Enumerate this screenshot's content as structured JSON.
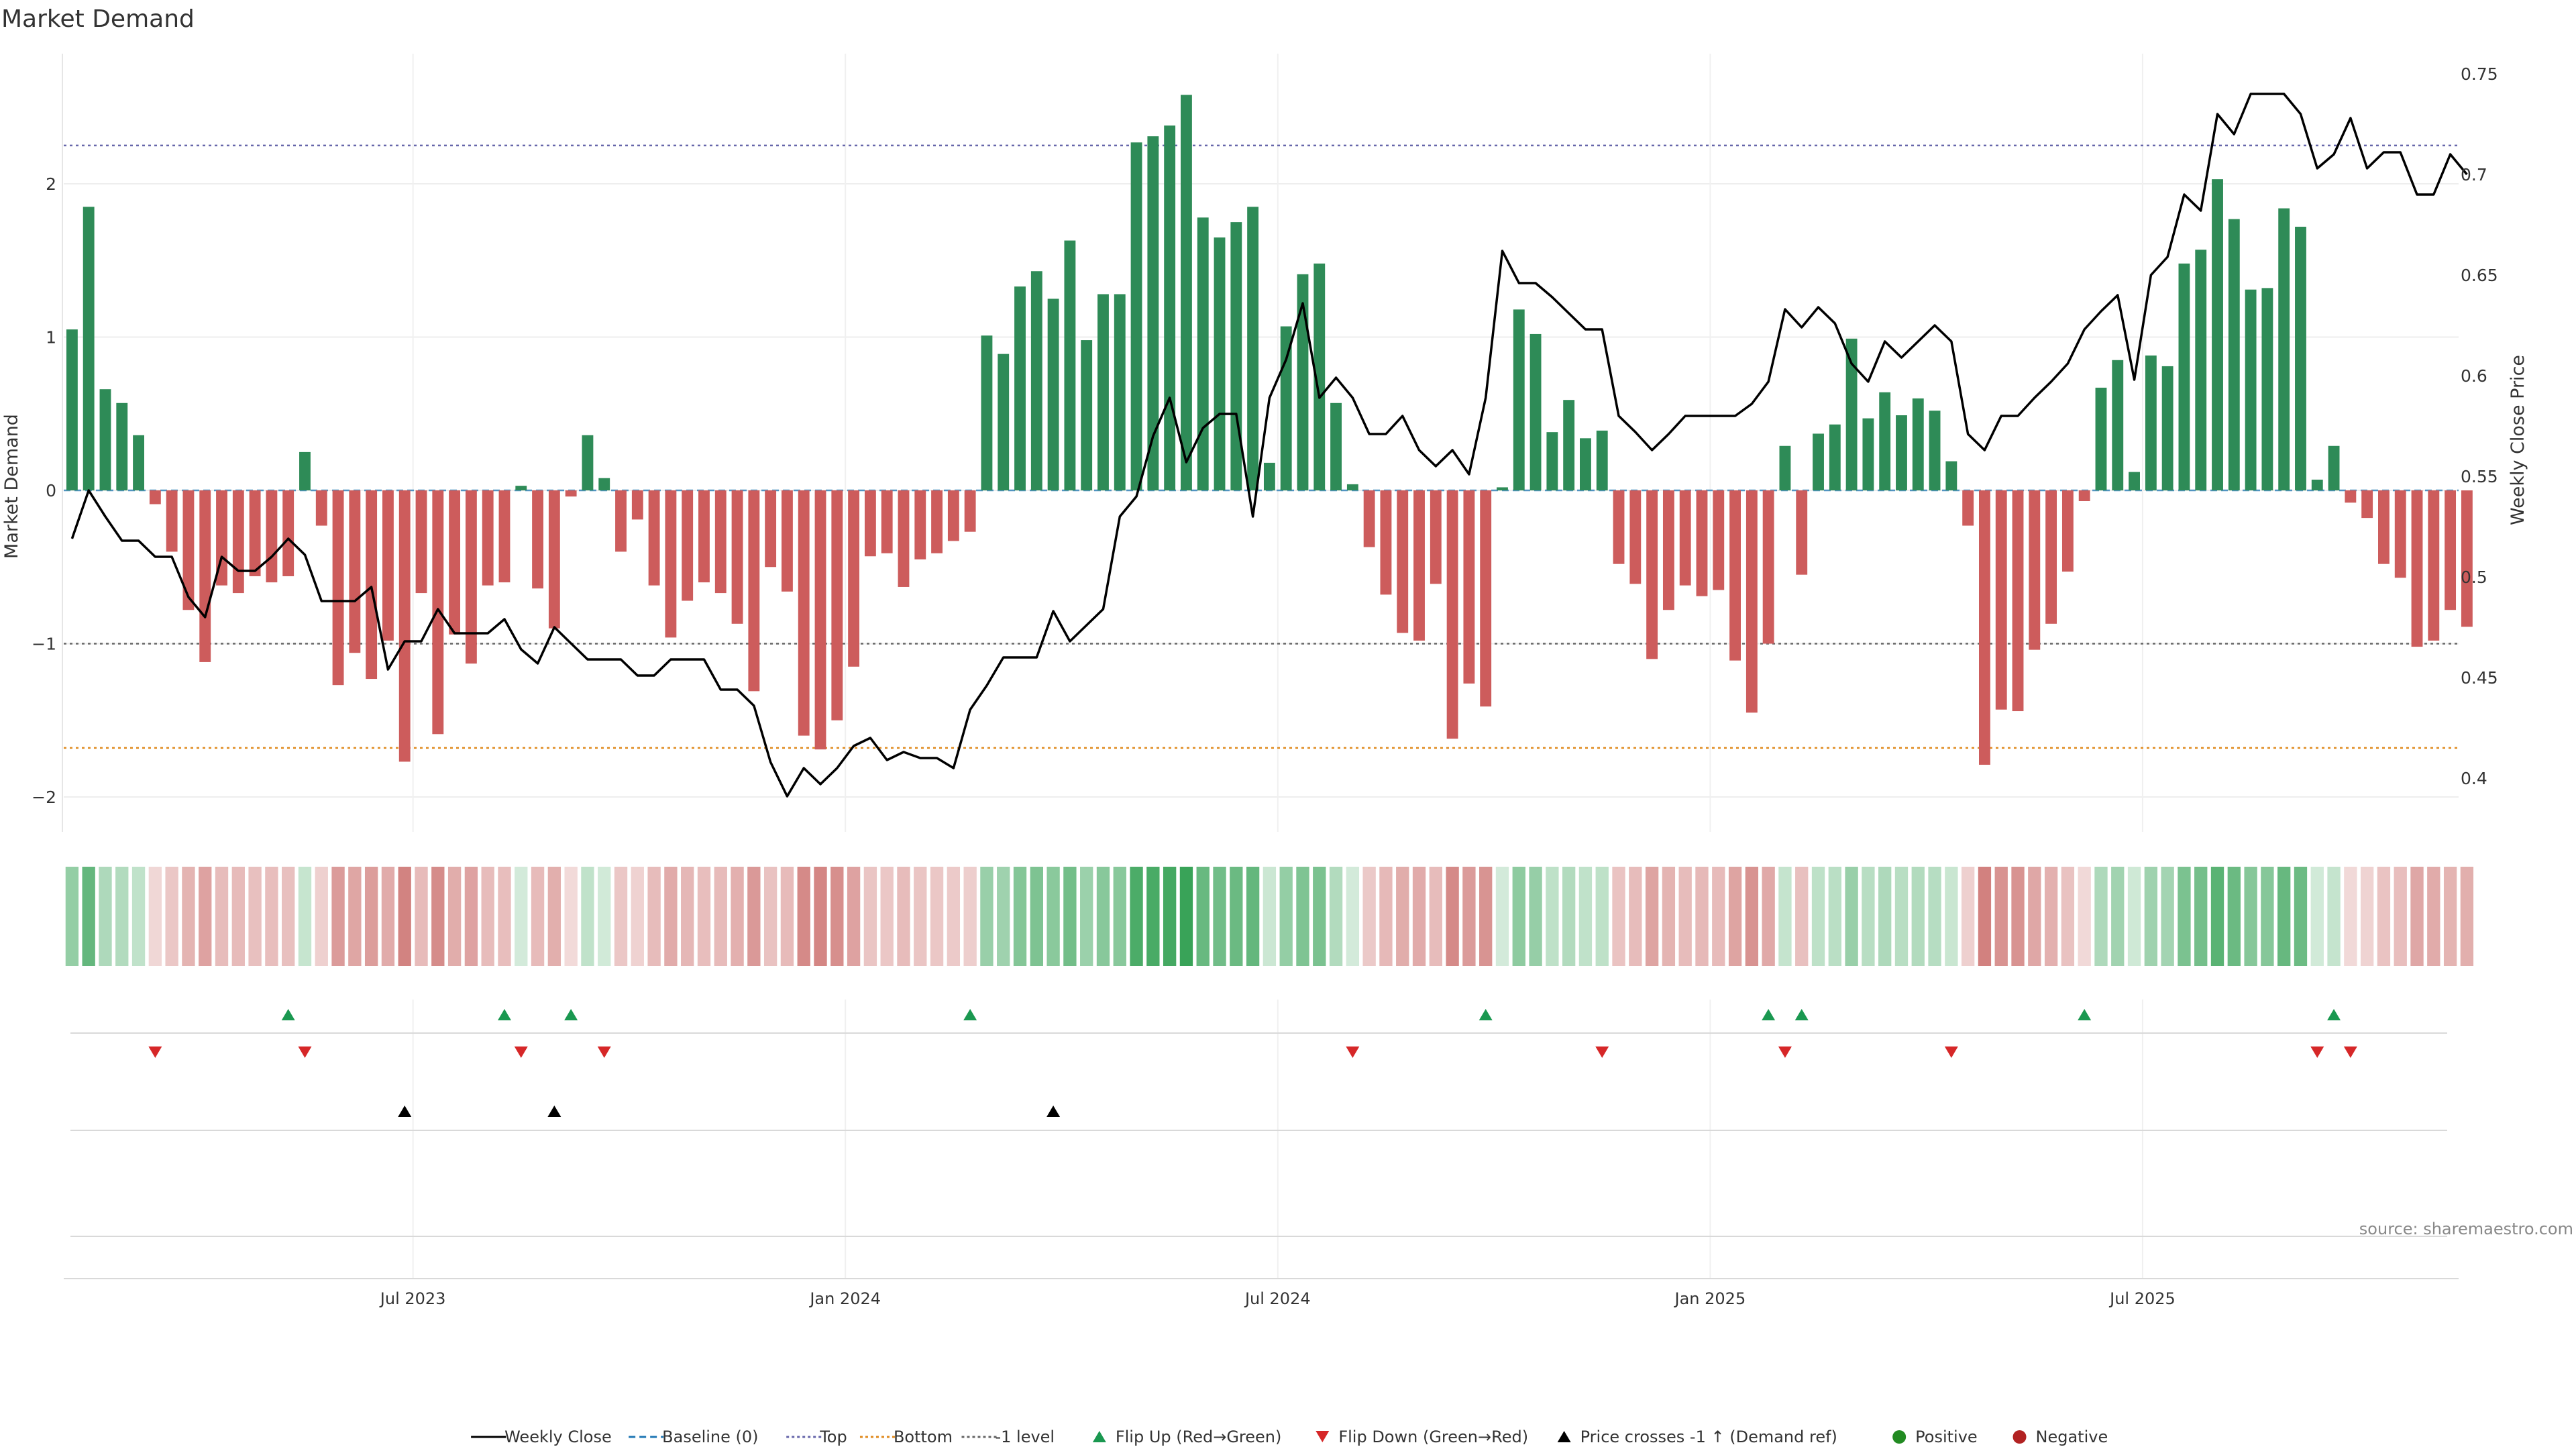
{
  "chart_data": {
    "type": "bar",
    "title": "Market Demand",
    "ylabel": "Market Demand",
    "y2label": "Weekly Close Price",
    "ylim": [
      -2.25,
      2.85
    ],
    "y2lim": [
      0.38,
      0.76
    ],
    "yticks": [
      2,
      1,
      0,
      -1,
      -2
    ],
    "ytick_labels": [
      "2",
      "1",
      "0",
      "−1",
      "−2"
    ],
    "y2ticks": [
      0.75,
      0.7,
      0.65,
      0.6,
      0.55,
      0.5,
      0.45,
      0.4
    ],
    "y2tick_labels": [
      "0.75",
      "0.7",
      "0.65",
      "0.6",
      "0.55",
      "0.5",
      "0.45",
      "0.4"
    ],
    "reference_lines": {
      "top": 2.25,
      "bottom": -1.68,
      "minus_one": -1,
      "baseline": 0
    },
    "week_count": 144,
    "x_tick_weeks": [
      21,
      47,
      73,
      99,
      125
    ],
    "x_tick_labels": [
      "Jul 2023",
      "Jan 2024",
      "Jul 2024",
      "Jan 2025",
      "Jul 2025"
    ],
    "demand": [
      1.05,
      1.85,
      0.66,
      0.57,
      0.36,
      -0.09,
      -0.4,
      -0.78,
      -1.12,
      -0.62,
      -0.67,
      -0.56,
      -0.6,
      -0.56,
      0.25,
      -0.23,
      -1.27,
      -1.06,
      -1.23,
      -0.98,
      -1.77,
      -0.67,
      -1.59,
      -0.94,
      -1.13,
      -0.62,
      -0.6,
      0.03,
      -0.64,
      -0.9,
      -0.04,
      0.36,
      0.08,
      -0.4,
      -0.19,
      -0.62,
      -0.96,
      -0.72,
      -0.6,
      -0.67,
      -0.87,
      -1.31,
      -0.5,
      -0.66,
      -1.6,
      -1.69,
      -1.5,
      -1.15,
      -0.43,
      -0.41,
      -0.63,
      -0.45,
      -0.41,
      -0.33,
      -0.27,
      1.01,
      0.89,
      1.33,
      1.43,
      1.25,
      1.63,
      0.98,
      1.28,
      1.28,
      2.27,
      2.31,
      2.38,
      2.58,
      1.78,
      1.65,
      1.75,
      1.85,
      0.18,
      1.07,
      1.41,
      1.48,
      0.57,
      0.04,
      -0.37,
      -0.68,
      -0.93,
      -0.98,
      -0.61,
      -1.62,
      -1.26,
      -1.41,
      0.02,
      1.18,
      1.02,
      0.38,
      0.59,
      0.34,
      0.39,
      -0.48,
      -0.61,
      -1.1,
      -0.78,
      -0.62,
      -0.69,
      -0.65,
      -1.11,
      -1.45,
      -1.0,
      0.29,
      -0.55,
      0.37,
      0.43,
      0.99,
      0.47,
      0.64,
      0.49,
      0.6,
      0.52,
      0.19,
      -0.23,
      -1.79,
      -1.43,
      -1.44,
      -1.04,
      -0.87,
      -0.53,
      -0.07,
      0.67,
      0.85,
      0.12,
      0.88,
      0.81,
      1.48,
      1.57,
      2.03,
      1.77,
      1.31,
      1.32,
      1.84,
      1.72,
      0.07,
      0.29,
      -0.08,
      -0.18,
      -0.48,
      -0.57,
      -1.02,
      -0.98,
      -0.78,
      -0.89
    ],
    "close": [
      0.519,
      0.543,
      0.53,
      0.518,
      0.518,
      0.51,
      0.51,
      0.49,
      0.48,
      0.51,
      0.503,
      0.503,
      0.51,
      0.519,
      0.511,
      0.488,
      0.488,
      0.488,
      0.495,
      0.454,
      0.468,
      0.468,
      0.484,
      0.472,
      0.472,
      0.472,
      0.479,
      0.464,
      0.457,
      0.475,
      0.467,
      0.459,
      0.459,
      0.459,
      0.451,
      0.451,
      0.459,
      0.459,
      0.459,
      0.444,
      0.444,
      0.436,
      0.408,
      0.391,
      0.405,
      0.397,
      0.405,
      0.416,
      0.42,
      0.409,
      0.413,
      0.41,
      0.41,
      0.405,
      0.434,
      0.446,
      0.46,
      0.46,
      0.46,
      0.483,
      0.468,
      0.476,
      0.484,
      0.53,
      0.54,
      0.57,
      0.589,
      0.557,
      0.574,
      0.581,
      0.581,
      0.53,
      0.589,
      0.608,
      0.636,
      0.589,
      0.599,
      0.589,
      0.571,
      0.571,
      0.58,
      0.563,
      0.555,
      0.563,
      0.551,
      0.589,
      0.662,
      0.646,
      0.646,
      0.639,
      0.631,
      0.623,
      0.623,
      0.58,
      0.572,
      0.563,
      0.571,
      0.58,
      0.58,
      0.58,
      0.58,
      0.586,
      0.597,
      0.633,
      0.624,
      0.634,
      0.626,
      0.606,
      0.597,
      0.617,
      0.609,
      0.617,
      0.625,
      0.617,
      0.571,
      0.563,
      0.58,
      0.58,
      0.589,
      0.597,
      0.606,
      0.623,
      0.632,
      0.64,
      0.598,
      0.65,
      0.659,
      0.69,
      0.682,
      0.73,
      0.72,
      0.74,
      0.74,
      0.74,
      0.73,
      0.703,
      0.71,
      0.728,
      0.703,
      0.711,
      0.711,
      0.69,
      0.69,
      0.71,
      0.7
    ],
    "flip_up_weeks": [
      13,
      26,
      30,
      54,
      85,
      102,
      104,
      121,
      136
    ],
    "flip_down_weeks": [
      5,
      14,
      27,
      32,
      77,
      92,
      103,
      113,
      135,
      137
    ],
    "price_cross_weeks": [
      20,
      29,
      59
    ],
    "legend": [
      {
        "name": "legend-weekly-close",
        "label": "Weekly Close",
        "kind": "line",
        "color": "#000000"
      },
      {
        "name": "legend-baseline",
        "label": "Baseline (0)",
        "kind": "dashed",
        "color": "#1f77b4"
      },
      {
        "name": "legend-top",
        "label": "Top",
        "kind": "dotted",
        "color": "#6666aa"
      },
      {
        "name": "legend-bottom",
        "label": "Bottom",
        "kind": "dotted",
        "color": "#e08a1e"
      },
      {
        "name": "legend-minus-one",
        "label": "-1 level",
        "kind": "dotted",
        "color": "#666666"
      },
      {
        "name": "legend-flip-up",
        "label": "Flip Up (Red→Green)",
        "kind": "tri-up",
        "color": "#1a9850"
      },
      {
        "name": "legend-flip-down",
        "label": "Flip Down (Green→Red)",
        "kind": "tri-down",
        "color": "#d62728"
      },
      {
        "name": "legend-price-cross",
        "label": "Price crosses -1 ↑ (Demand ref)",
        "kind": "tri-up",
        "color": "#000000"
      },
      {
        "name": "legend-positive",
        "label": "Positive",
        "kind": "dot",
        "color": "#228b22"
      },
      {
        "name": "legend-negative",
        "label": "Negative",
        "kind": "dot",
        "color": "#b22222"
      }
    ],
    "source": "source: sharemaestro.com",
    "colors": {
      "positive_bar": "#2e8b57",
      "negative_bar": "#cd5c5c",
      "heat_pos": "#2e9e4f",
      "heat_neg": "#c0504d"
    }
  }
}
